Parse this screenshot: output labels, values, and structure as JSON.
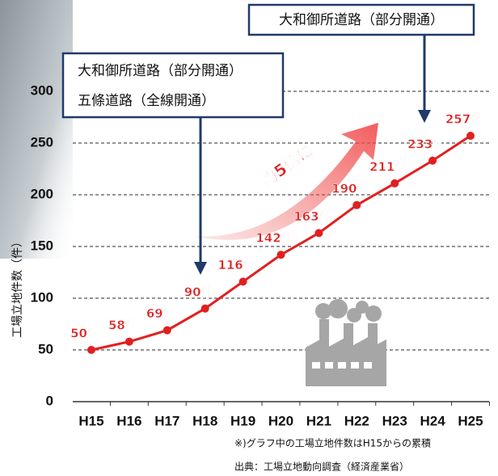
{
  "chart_data": {
    "type": "line",
    "y_label": "工場立地件数（件）",
    "categories": [
      "H15",
      "H16",
      "H17",
      "H18",
      "H19",
      "H20",
      "H21",
      "H22",
      "H23",
      "H24",
      "H25"
    ],
    "values": [
      50,
      58,
      69,
      90,
      116,
      142,
      163,
      190,
      211,
      233,
      257
    ],
    "value_labels": [
      "50件",
      "58件",
      "69件",
      "90件",
      "116件",
      "142件",
      "163件",
      "190件",
      "211件",
      "233件",
      "257件"
    ],
    "color": "#e02020",
    "ylim": [
      0,
      300
    ],
    "yticks": [
      0,
      50,
      100,
      150,
      200,
      250,
      300
    ],
    "grid": true,
    "annotation": "約5倍に",
    "callouts": [
      [
        "大和御所道路（部分開通）"
      ],
      [
        "大和御所道路（部分開通）",
        "五條道路（全線開通）"
      ]
    ],
    "notes": [
      "※)グラフ中の工場立地件数はH15からの累積",
      "出典：工場立地動向調査（経済産業省）"
    ]
  }
}
